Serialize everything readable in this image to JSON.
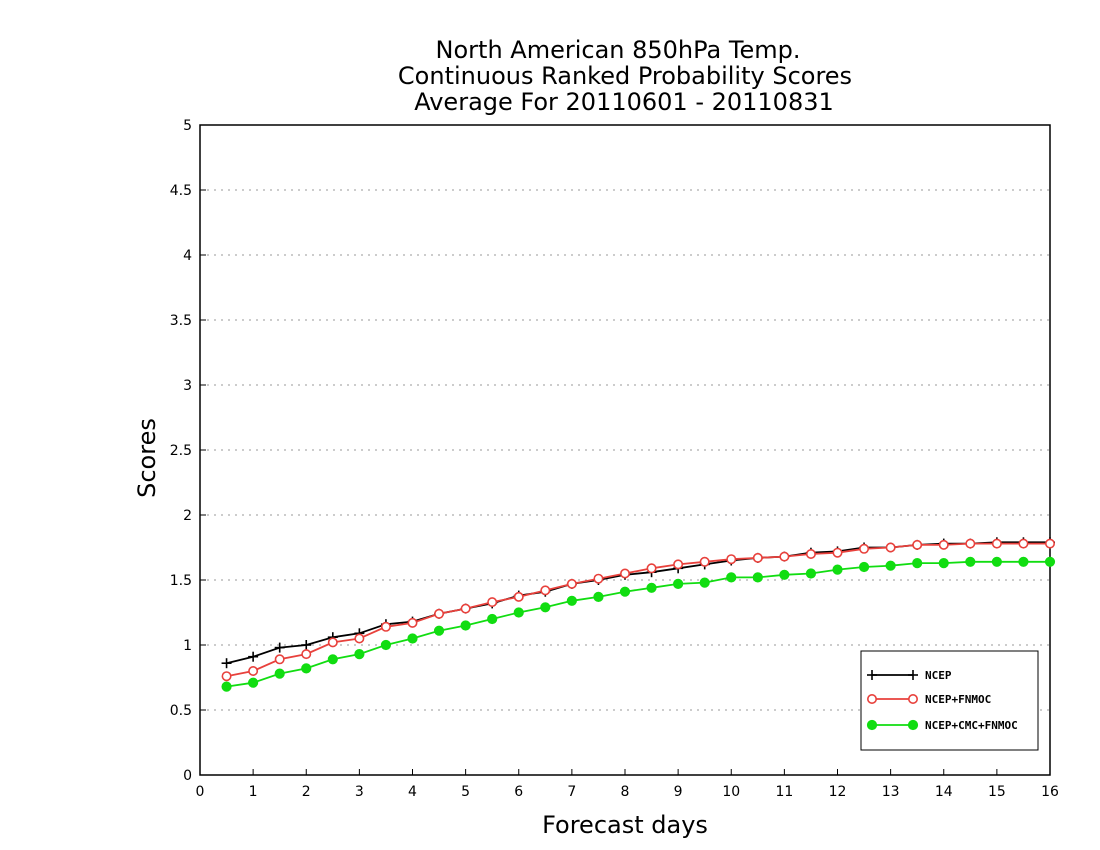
{
  "chart_data": {
    "type": "line",
    "title_lines": [
      "North American 850hPa Temp.",
      "Continuous Ranked Probability Scores",
      "Average For 20110601 - 20110831"
    ],
    "xlabel": "Forecast days",
    "ylabel": "Scores",
    "xlim": [
      0,
      16
    ],
    "ylim": [
      0,
      5
    ],
    "x_ticks": [
      "0",
      "1",
      "2",
      "3",
      "4",
      "5",
      "6",
      "7",
      "8",
      "9",
      "10",
      "11",
      "12",
      "13",
      "14",
      "15",
      "16"
    ],
    "y_ticks": [
      "0",
      "0.5",
      "1",
      "1.5",
      "2",
      "2.5",
      "3",
      "3.5",
      "4",
      "4.5",
      "5"
    ],
    "grid": "horizontal dotted",
    "legend_position": "bottom-right",
    "x": [
      0.5,
      1.0,
      1.5,
      2.0,
      2.5,
      3.0,
      3.5,
      4.0,
      4.5,
      5.0,
      5.5,
      6.0,
      6.5,
      7.0,
      7.5,
      8.0,
      8.5,
      9.0,
      9.5,
      10.0,
      10.5,
      11.0,
      11.5,
      12.0,
      12.5,
      13.0,
      13.5,
      14.0,
      14.5,
      15.0,
      15.5,
      16.0
    ],
    "series": [
      {
        "name": "NCEP",
        "color": "#000000",
        "marker": "plus",
        "values": [
          0.86,
          0.91,
          0.98,
          1.0,
          1.06,
          1.09,
          1.16,
          1.18,
          1.24,
          1.28,
          1.32,
          1.38,
          1.41,
          1.47,
          1.5,
          1.54,
          1.56,
          1.59,
          1.62,
          1.65,
          1.67,
          1.68,
          1.71,
          1.72,
          1.75,
          1.75,
          1.77,
          1.78,
          1.78,
          1.79,
          1.79,
          1.79
        ]
      },
      {
        "name": "NCEP+FNMOC",
        "color": "#e8413c",
        "marker": "open-circle",
        "values": [
          0.76,
          0.8,
          0.89,
          0.93,
          1.02,
          1.05,
          1.14,
          1.17,
          1.24,
          1.28,
          1.33,
          1.37,
          1.42,
          1.47,
          1.51,
          1.55,
          1.59,
          1.62,
          1.64,
          1.66,
          1.67,
          1.68,
          1.7,
          1.71,
          1.74,
          1.75,
          1.77,
          1.77,
          1.78,
          1.78,
          1.78,
          1.78
        ]
      },
      {
        "name": "NCEP+CMC+FNMOC",
        "color": "#11dd11",
        "marker": "filled-circle",
        "values": [
          0.68,
          0.71,
          0.78,
          0.82,
          0.89,
          0.93,
          1.0,
          1.05,
          1.11,
          1.15,
          1.2,
          1.25,
          1.29,
          1.34,
          1.37,
          1.41,
          1.44,
          1.47,
          1.48,
          1.52,
          1.52,
          1.54,
          1.55,
          1.58,
          1.6,
          1.61,
          1.63,
          1.63,
          1.64,
          1.64,
          1.64,
          1.64
        ]
      }
    ]
  }
}
